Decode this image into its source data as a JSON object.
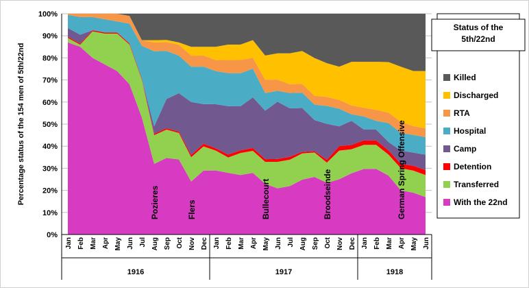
{
  "chart_data": {
    "type": "area",
    "stacked": true,
    "percent": true,
    "ylabel": "Percentage status of the 154 men of 5th/22nd",
    "y_ticks": [
      "0%",
      "10%",
      "20%",
      "30%",
      "40%",
      "50%",
      "60%",
      "70%",
      "80%",
      "90%",
      "100%"
    ],
    "ylim": [
      0,
      100
    ],
    "grid": true,
    "legend_placement": "right",
    "legend_title": "Status of the 5th/22nd",
    "categories": [
      "Jan",
      "Feb",
      "Mar",
      "Apr",
      "May",
      "Jun",
      "Jul",
      "Aug",
      "Sep",
      "Oct",
      "Nov",
      "Dec",
      "Jan",
      "Feb",
      "Mar",
      "Apr",
      "May",
      "Jun",
      "Jul",
      "Aug",
      "Sep",
      "Oct",
      "Nov",
      "Dec",
      "Jan",
      "Feb",
      "Mar",
      "Apr",
      "May",
      "Jun"
    ],
    "years": [
      {
        "label": "1916",
        "start": 0,
        "end": 11
      },
      {
        "label": "1917",
        "start": 12,
        "end": 23
      },
      {
        "label": "1918",
        "start": 24,
        "end": 29
      }
    ],
    "series": [
      {
        "name": "With the 22nd",
        "color": "#D63BC2",
        "values": [
          87,
          85,
          80,
          77,
          74,
          68,
          53,
          32,
          35,
          34,
          24,
          29,
          29,
          28,
          27,
          28,
          23,
          21,
          22,
          25,
          26,
          23,
          25,
          28,
          30,
          30,
          28,
          20,
          19,
          17
        ]
      },
      {
        "name": "Transferred",
        "color": "#92D050",
        "values": [
          2,
          1,
          12,
          14,
          17,
          18,
          17,
          13,
          13,
          12,
          11,
          11,
          9,
          7,
          10,
          10,
          10,
          12,
          12,
          12,
          11,
          9,
          13,
          11,
          11,
          11,
          10,
          10,
          10,
          10
        ]
      },
      {
        "name": "Detention",
        "color": "#FF0000",
        "values": [
          0.5,
          0.5,
          0.5,
          0.5,
          0.5,
          0.5,
          0.5,
          0.6,
          0.6,
          0.6,
          1.0,
          1.2,
          1.0,
          1.3,
          1.2,
          1.3,
          1.2,
          1.3,
          1.3,
          0.7,
          0.6,
          1.2,
          2.0,
          2.0,
          2.0,
          2.0,
          2.0,
          2.0,
          2.2,
          2.2
        ]
      },
      {
        "name": "Camp",
        "color": "#71588F",
        "values": [
          4,
          4,
          0,
          0,
          0,
          0,
          0,
          3.4,
          13.4,
          17.4,
          24,
          18,
          20,
          22,
          20,
          23,
          22,
          26,
          22,
          20,
          14,
          16,
          9,
          11,
          5,
          5,
          4,
          6,
          6,
          7
        ]
      },
      {
        "name": "Hospital",
        "color": "#4BACC6",
        "values": [
          6,
          8,
          6,
          6,
          5,
          9,
          15,
          34,
          22,
          17,
          16,
          17,
          15,
          15,
          15,
          13,
          8,
          5,
          7,
          7,
          7,
          8,
          8,
          3,
          6,
          4,
          9,
          8,
          8,
          8
        ]
      },
      {
        "name": "RTA",
        "color": "#F79646",
        "values": [
          0.5,
          1.5,
          1.5,
          2.5,
          3.5,
          3.5,
          2.5,
          4,
          4,
          5,
          5,
          5,
          5,
          6,
          6,
          5,
          6,
          5,
          4,
          4,
          4,
          4,
          4,
          4,
          4,
          5,
          5,
          5,
          4,
          4
        ]
      },
      {
        "name": "Discharged",
        "color": "#FFC000",
        "values": [
          0,
          0,
          0,
          0,
          0,
          0,
          0,
          1,
          1,
          1,
          4,
          4,
          6,
          7,
          7,
          8,
          11,
          12,
          14,
          15,
          17,
          15,
          15,
          20,
          21,
          22,
          24,
          25,
          25,
          26
        ]
      },
      {
        "name": "Killed",
        "color": "#595959",
        "values": [
          0,
          0,
          0,
          0,
          0,
          1,
          12,
          12,
          12,
          13,
          15,
          15,
          15,
          14,
          14,
          12,
          19,
          18,
          18,
          17,
          20,
          22,
          24,
          22,
          22,
          22,
          23,
          24,
          26,
          26
        ]
      }
    ],
    "annotations": [
      {
        "text": "Pozieres",
        "index": 7
      },
      {
        "text": "Flers",
        "index": 10
      },
      {
        "text": "Bullecourt",
        "index": 16
      },
      {
        "text": "Broodseinde",
        "index": 21
      },
      {
        "text": "German Spring Offensive",
        "index": 27
      }
    ]
  }
}
